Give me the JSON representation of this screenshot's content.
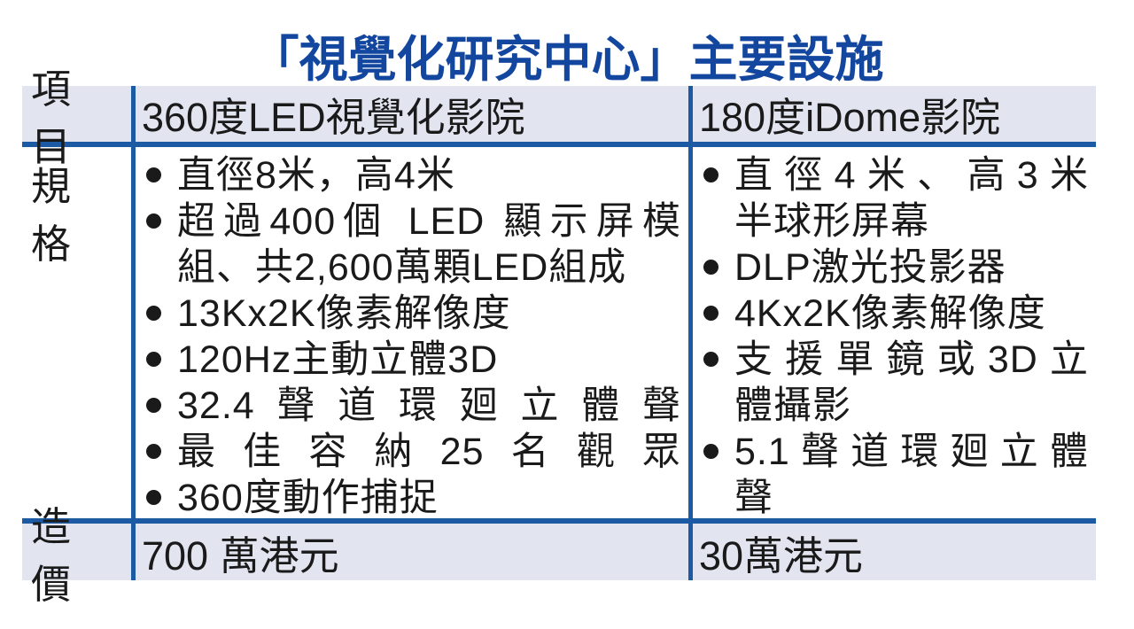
{
  "title": "「視覺化研究中心」主要設施",
  "table": {
    "header": {
      "label": "項目",
      "col1": "360度LED視覺化影院",
      "col2": "180度iDome影院"
    },
    "specs": {
      "label": "規格",
      "col1": [
        {
          "lines": [
            "直徑8米，高4米"
          ]
        },
        {
          "lines": [
            "超過400個 LED 顯示屏模",
            "組、共2,600萬顆LED組成"
          ]
        },
        {
          "lines": [
            "13Kx2K像素解像度"
          ]
        },
        {
          "lines": [
            "120Hz主動立體3D"
          ]
        },
        {
          "lines": [
            "32.4聲道環廻立體聲"
          ]
        },
        {
          "lines": [
            "最佳容納25名觀眾"
          ]
        },
        {
          "lines": [
            "360度動作捕捉"
          ]
        }
      ],
      "col2": [
        {
          "lines": [
            "直徑4米、高3米",
            "半球形屏幕"
          ]
        },
        {
          "lines": [
            "DLP激光投影器"
          ]
        },
        {
          "lines": [
            "4Kx2K像素解像度"
          ]
        },
        {
          "lines": [
            "支援單鏡或3D立",
            "體攝影"
          ]
        },
        {
          "lines": [
            "5.1聲道環廻立體",
            "聲"
          ]
        }
      ]
    },
    "price": {
      "label": "造價",
      "col1": "700 萬港元",
      "col2": "30萬港元"
    }
  },
  "colors": {
    "title": "#13469f",
    "line": "#1d5aa4",
    "row_bg": "#e2e4f0",
    "text": "#1a1a1a"
  }
}
